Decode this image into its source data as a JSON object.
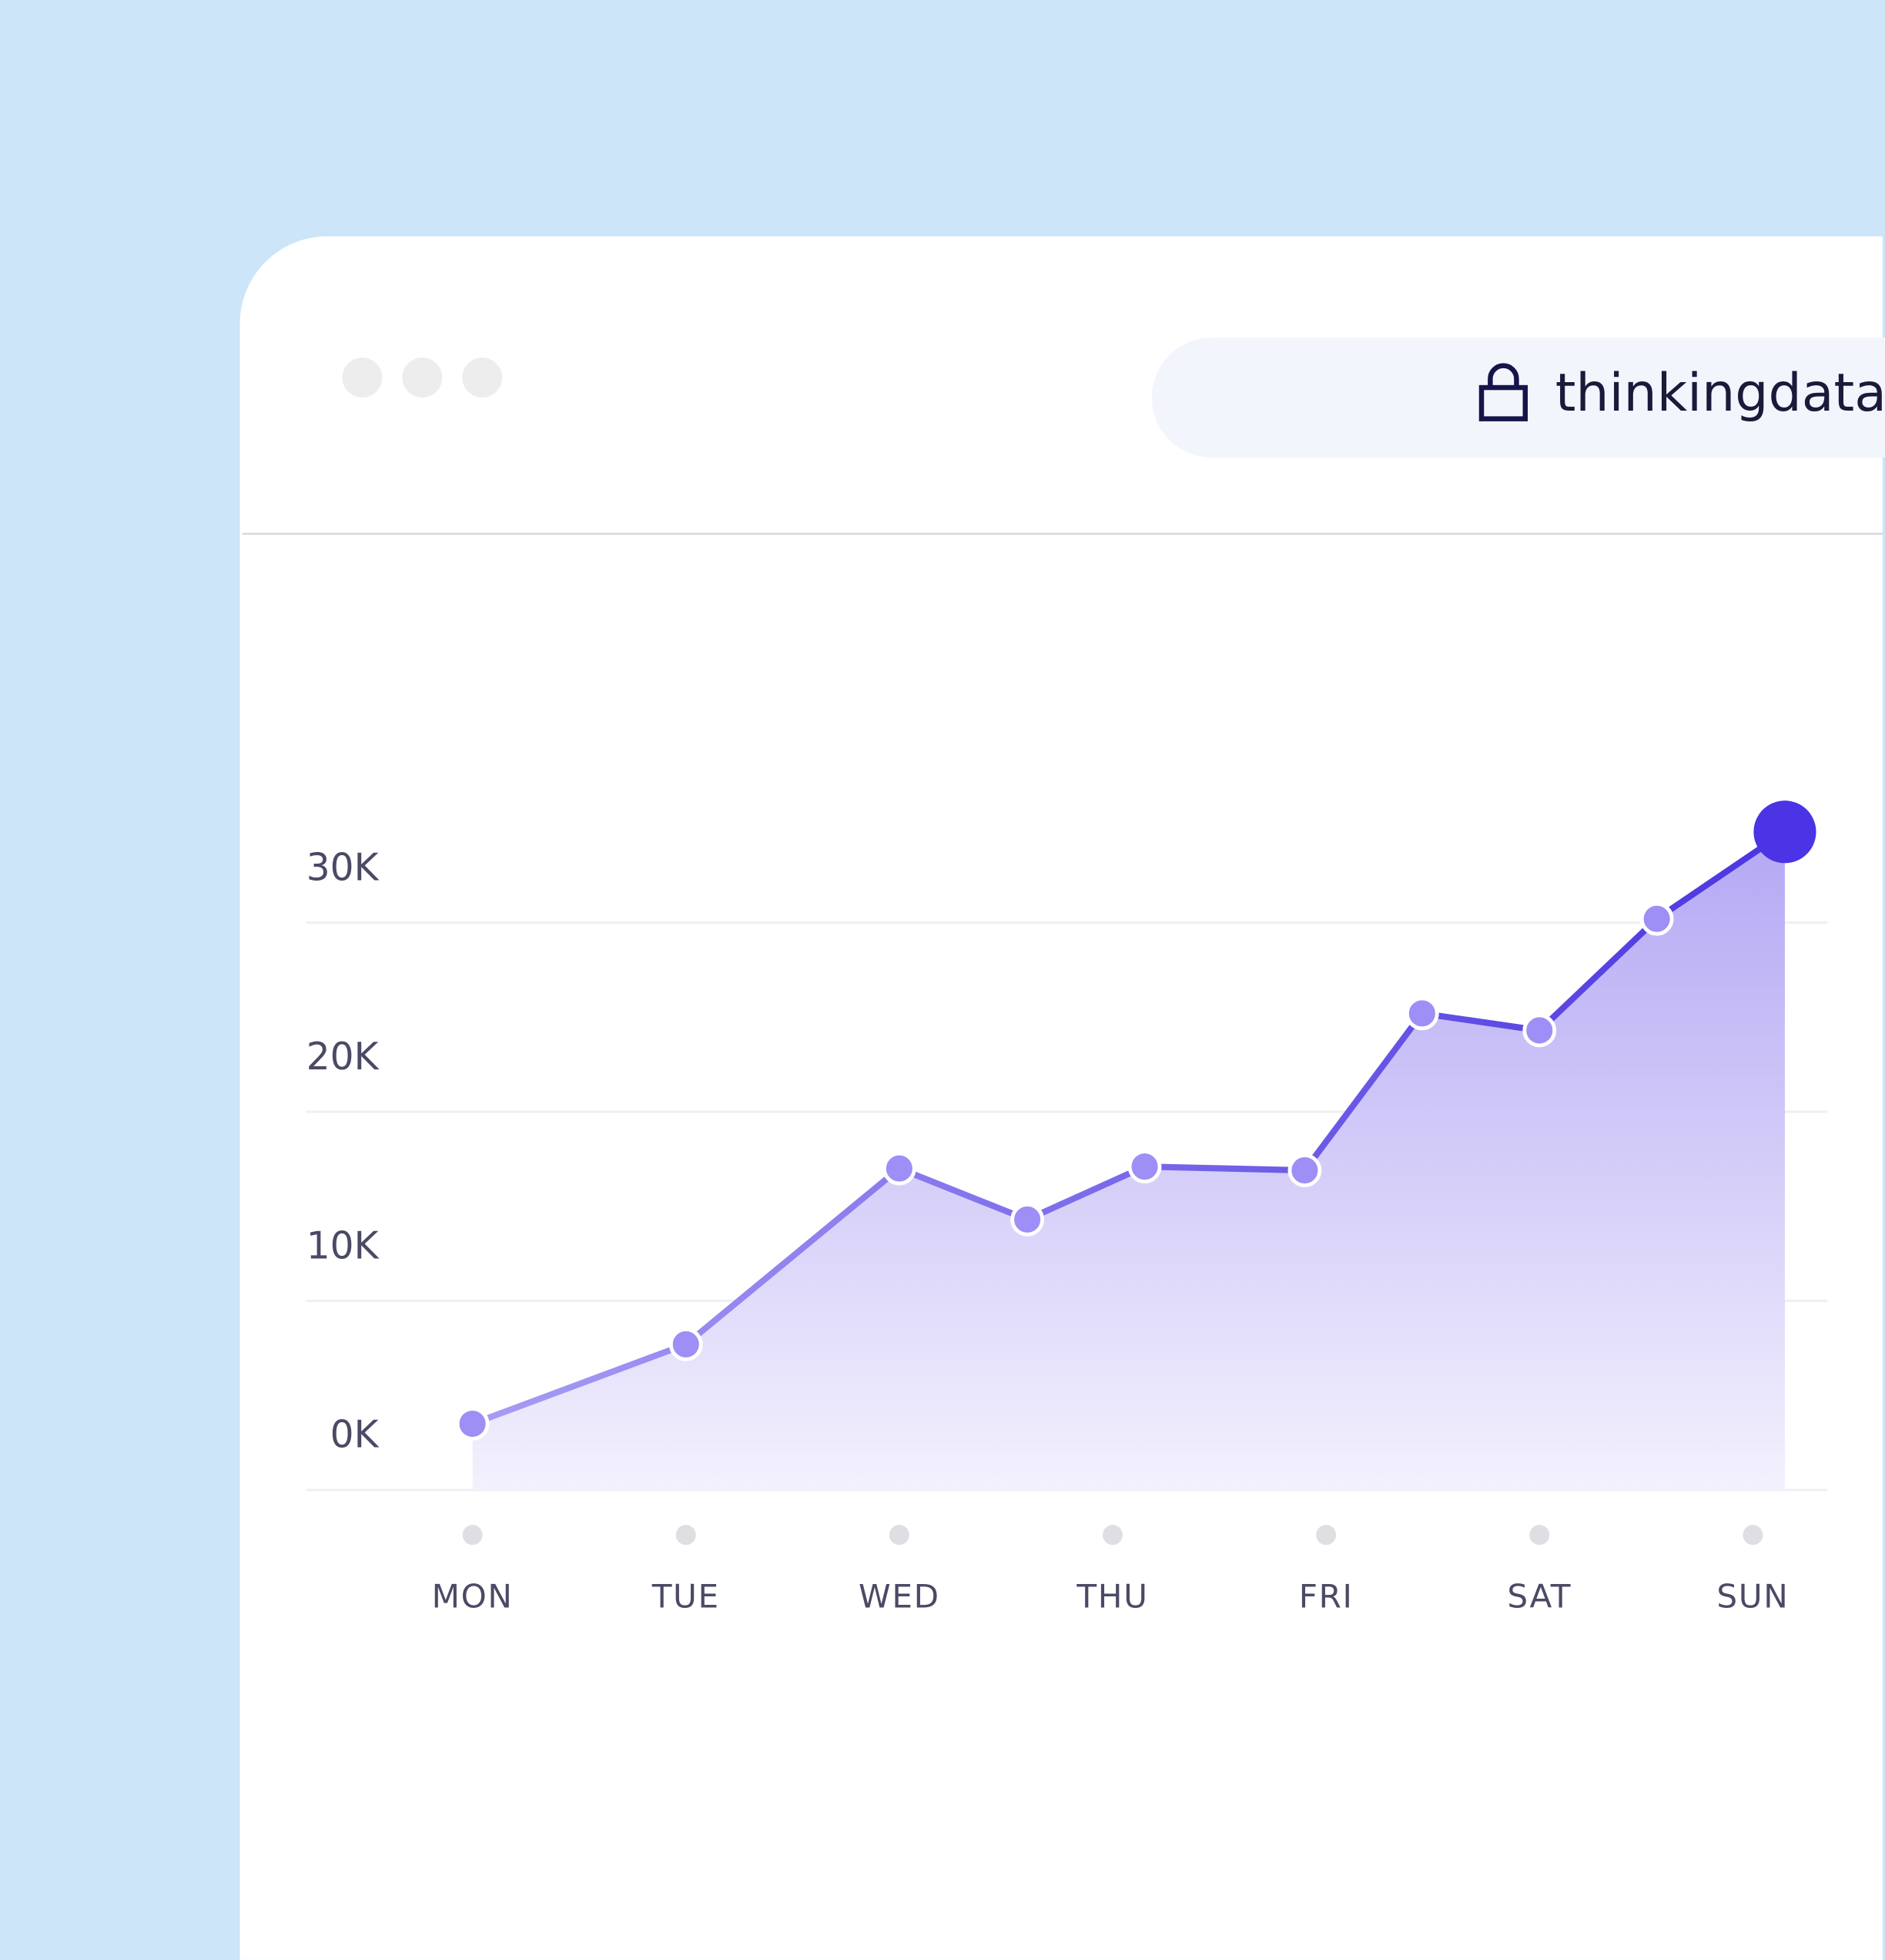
{
  "browser": {
    "url": "thinkingdata."
  },
  "chart_data": {
    "type": "line",
    "x": [
      0,
      1,
      2,
      2.6,
      3.15,
      3.9,
      4.45,
      5,
      5.55,
      6.15
    ],
    "values": [
      3.5,
      7.7,
      17,
      14.3,
      17.1,
      16.9,
      25.2,
      24.3,
      30.2,
      34.8
    ],
    "xlim": [
      -0.78,
      6.35
    ],
    "xticks": [
      {
        "value": 0,
        "label": "MON"
      },
      {
        "value": 1,
        "label": "TUE"
      },
      {
        "value": 2,
        "label": "WED"
      },
      {
        "value": 3,
        "label": "THU"
      },
      {
        "value": 4,
        "label": "FRI"
      },
      {
        "value": 5,
        "label": "SAT"
      },
      {
        "value": 6,
        "label": "SUN"
      }
    ],
    "ylim": [
      0,
      35
    ],
    "yticks": [
      {
        "value": 0,
        "label": "0K"
      },
      {
        "value": 10,
        "label": "10K"
      },
      {
        "value": 20,
        "label": "20K"
      },
      {
        "value": 30,
        "label": "30K"
      }
    ],
    "color": "#7b6cf0",
    "grid": true
  }
}
